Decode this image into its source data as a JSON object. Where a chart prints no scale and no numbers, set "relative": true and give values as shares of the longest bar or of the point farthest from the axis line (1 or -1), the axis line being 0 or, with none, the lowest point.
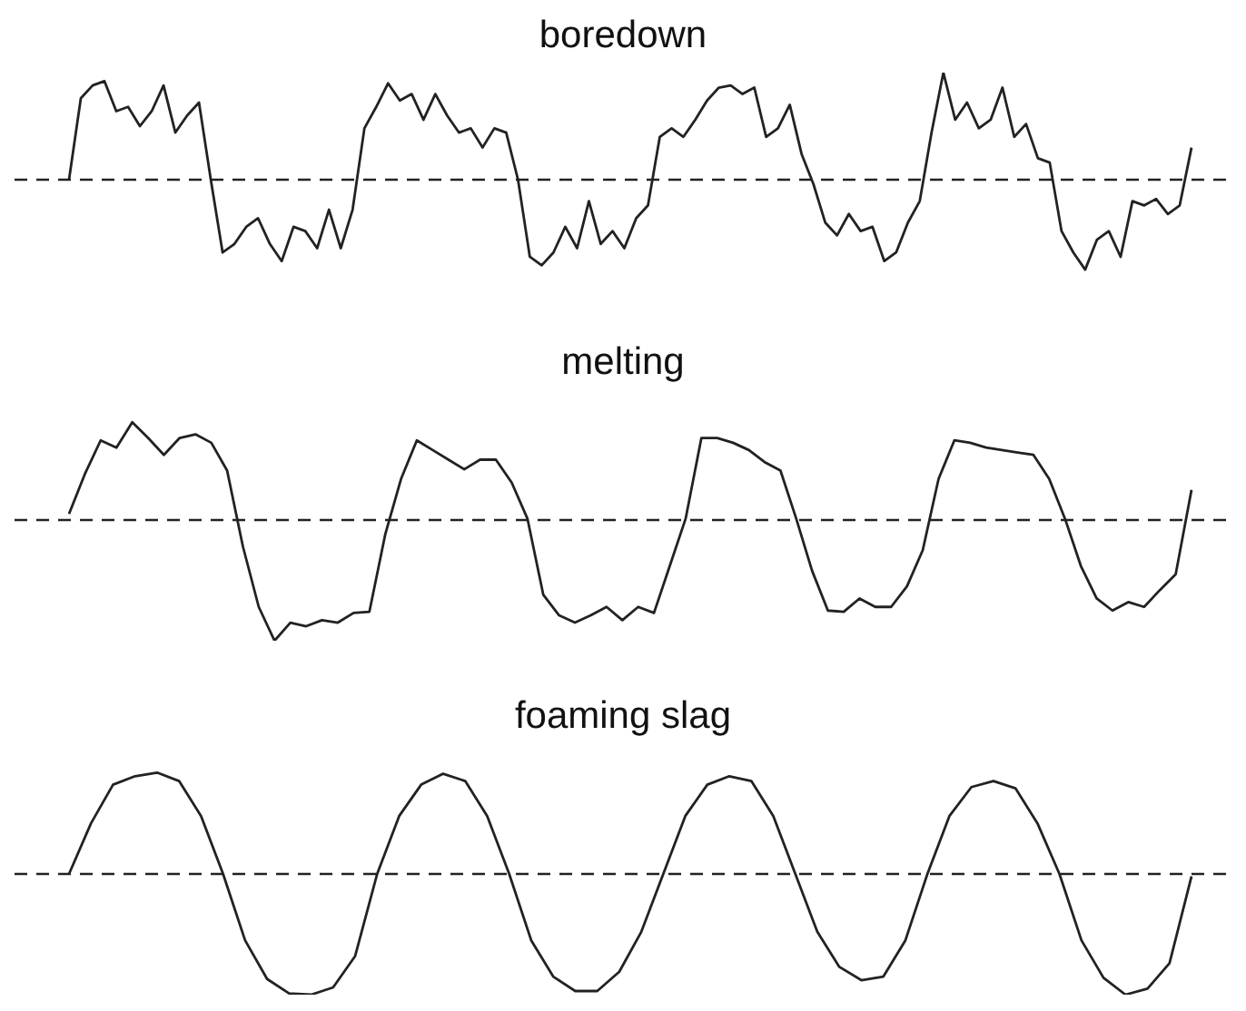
{
  "chart_data": [
    {
      "type": "line",
      "title": "boredown",
      "relative": true,
      "color": "#222222",
      "categories": [
        null,
        null,
        null,
        null,
        null,
        null,
        null,
        null,
        null,
        null,
        null,
        null,
        null,
        null,
        null,
        null,
        null,
        null,
        null,
        null,
        null,
        null,
        null,
        null,
        null,
        null,
        null,
        null,
        null,
        null,
        null,
        null,
        null,
        null,
        null,
        null,
        null,
        null,
        null,
        null,
        null,
        null,
        null,
        null,
        null,
        null,
        null,
        null,
        null,
        null,
        null,
        null,
        null,
        null,
        null,
        null,
        null,
        null,
        null,
        null,
        null,
        null,
        null,
        null,
        null,
        null,
        null,
        null,
        null,
        null,
        null,
        null,
        null,
        null,
        null,
        null,
        null,
        null,
        null,
        null,
        null,
        null,
        null,
        null,
        null,
        null,
        null,
        null,
        null,
        null,
        null,
        null,
        null,
        null,
        null,
        null
      ],
      "values": [
        0,
        0.76,
        0.88,
        0.92,
        0.64,
        0.68,
        0.5,
        0.64,
        0.88,
        0.44,
        0.6,
        0.72,
        0,
        -0.68,
        -0.6,
        -0.44,
        -0.36,
        -0.6,
        -0.76,
        -0.44,
        -0.48,
        -0.64,
        -0.28,
        -0.64,
        -0.28,
        0.48,
        0.68,
        0.9,
        0.74,
        0.8,
        0.56,
        0.8,
        0.6,
        0.44,
        0.48,
        0.3,
        0.48,
        0.44,
        0,
        -0.72,
        -0.8,
        -0.68,
        -0.44,
        -0.64,
        -0.2,
        -0.6,
        -0.48,
        -0.64,
        -0.36,
        -0.24,
        0.4,
        0.48,
        0.4,
        0.56,
        0.74,
        0.86,
        0.88,
        0.8,
        0.86,
        0.4,
        0.48,
        0.7,
        0.24,
        -0.04,
        -0.4,
        -0.52,
        -0.32,
        -0.48,
        -0.44,
        -0.76,
        -0.68,
        -0.4,
        -0.2,
        0.44,
        1,
        0.56,
        0.72,
        0.48,
        0.56,
        0.86,
        0.4,
        0.52,
        0.2,
        0.16,
        -0.48,
        -0.68,
        -0.84,
        -0.56,
        -0.48,
        -0.72,
        -0.2,
        -0.24,
        -0.18,
        -0.32,
        -0.24,
        0.3
      ],
      "ref_lines": [
        {
          "axis": "y",
          "value": 0,
          "line_style": "dashed",
          "color": "#222222"
        }
      ]
    },
    {
      "type": "line",
      "title": "melting",
      "relative": true,
      "color": "#222222",
      "categories": [
        null,
        null,
        null,
        null,
        null,
        null,
        null,
        null,
        null,
        null,
        null,
        null,
        null,
        null,
        null,
        null,
        null,
        null,
        null,
        null,
        null,
        null,
        null,
        null,
        null,
        null,
        null,
        null,
        null,
        null,
        null,
        null,
        null,
        null,
        null,
        null,
        null,
        null,
        null,
        null,
        null,
        null,
        null,
        null,
        null,
        null,
        null,
        null,
        null,
        null,
        null,
        null,
        null,
        null,
        null,
        null,
        null,
        null,
        null,
        null,
        null,
        null,
        null,
        null,
        null,
        null,
        null,
        null,
        null,
        null,
        null,
        null
      ],
      "values": [
        0.05,
        0.38,
        0.66,
        0.6,
        0.81,
        0.68,
        0.54,
        0.68,
        0.71,
        0.64,
        0.41,
        -0.22,
        -0.72,
        -1,
        -0.85,
        -0.88,
        -0.83,
        -0.85,
        -0.77,
        -0.76,
        -0.12,
        0.34,
        0.66,
        0.58,
        0.5,
        0.42,
        0.5,
        0.5,
        0.31,
        0.01,
        -0.62,
        -0.79,
        -0.85,
        -0.79,
        -0.72,
        -0.83,
        -0.72,
        -0.77,
        -0.38,
        0.01,
        0.68,
        0.68,
        0.64,
        0.58,
        0.48,
        0.41,
        0.01,
        -0.42,
        -0.75,
        -0.76,
        -0.65,
        -0.72,
        -0.72,
        -0.55,
        -0.25,
        0.34,
        0.66,
        0.64,
        0.6,
        0.58,
        0.56,
        0.54,
        0.34,
        0.01,
        -0.38,
        -0.65,
        -0.75,
        -0.68,
        -0.72,
        -0.58,
        -0.45,
        0.25
      ],
      "ref_lines": [
        {
          "axis": "y",
          "value": 0,
          "line_style": "dashed",
          "color": "#222222"
        }
      ]
    },
    {
      "type": "line",
      "title": "foaming slag",
      "relative": true,
      "color": "#222222",
      "categories": [
        null,
        null,
        null,
        null,
        null,
        null,
        null,
        null,
        null,
        null,
        null,
        null,
        null,
        null,
        null,
        null,
        null,
        null,
        null,
        null,
        null,
        null,
        null,
        null,
        null,
        null,
        null,
        null,
        null,
        null,
        null,
        null,
        null,
        null,
        null,
        null,
        null,
        null,
        null,
        null,
        null,
        null,
        null,
        null,
        null,
        null,
        null,
        null,
        null,
        null,
        null,
        null
      ],
      "values": [
        0,
        0.42,
        0.74,
        0.81,
        0.84,
        0.77,
        0.48,
        0,
        -0.55,
        -0.87,
        -0.99,
        -1,
        -0.94,
        -0.68,
        0,
        0.48,
        0.74,
        0.83,
        0.77,
        0.48,
        0,
        -0.55,
        -0.85,
        -0.97,
        -0.97,
        -0.81,
        -0.48,
        0,
        0.48,
        0.74,
        0.81,
        0.77,
        0.48,
        0,
        -0.48,
        -0.77,
        -0.88,
        -0.85,
        -0.55,
        0,
        0.48,
        0.72,
        0.77,
        0.71,
        0.42,
        0,
        -0.55,
        -0.86,
        -1,
        -0.95,
        -0.74,
        -0.02
      ],
      "ref_lines": [
        {
          "axis": "y",
          "value": 0,
          "line_style": "dashed",
          "color": "#222222"
        }
      ]
    }
  ]
}
